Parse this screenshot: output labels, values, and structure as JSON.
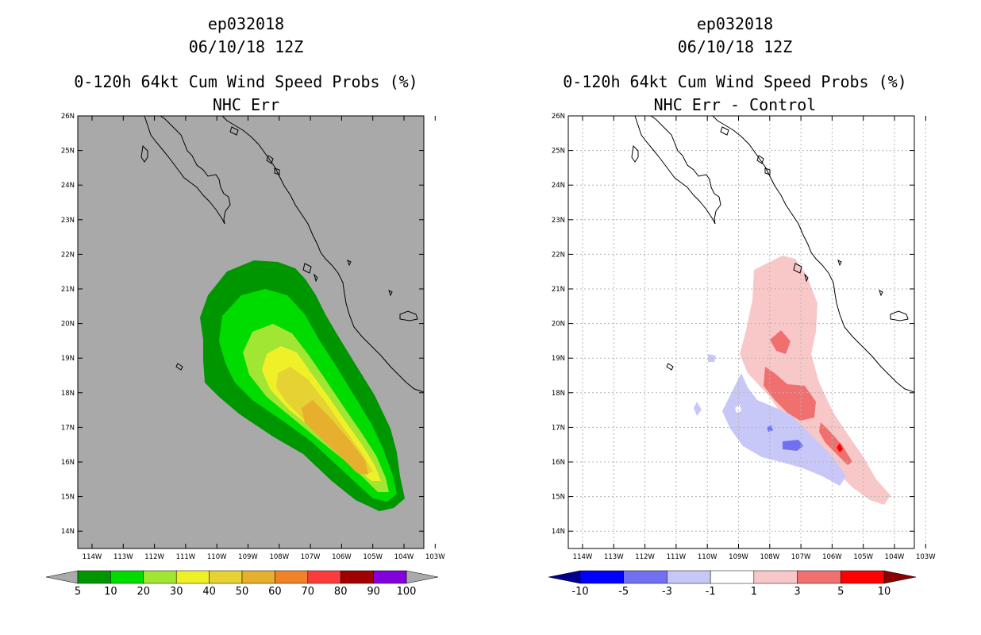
{
  "left_panel": {
    "storm_id": "ep032018",
    "datetime": "06/10/18 12Z",
    "product": "0-120h 64kt Cum Wind Speed Probs (%)",
    "subtitle": "NHC Err",
    "lat_labels": [
      "26N",
      "25N",
      "24N",
      "23N",
      "22N",
      "21N",
      "20N",
      "19N",
      "18N",
      "17N",
      "16N",
      "15N",
      "14N"
    ],
    "lon_labels": [
      "114W",
      "113W",
      "112W",
      "111W",
      "110W",
      "109W",
      "108W",
      "107W",
      "106W",
      "105W",
      "104W",
      "103W"
    ],
    "colorbar": {
      "labels": [
        "5",
        "10",
        "20",
        "30",
        "40",
        "50",
        "60",
        "70",
        "80",
        "90",
        "100"
      ],
      "colors": [
        "#009600",
        "#00dc00",
        "#a0e632",
        "#f0f028",
        "#e6d232",
        "#e6af2d",
        "#f08228",
        "#fa3c3c",
        "#a00000",
        "#8200dc"
      ],
      "end_color": "#aaaaaa"
    },
    "background": "#a9a9a9",
    "probability_values": [
      5,
      10,
      20,
      30,
      40,
      50,
      60
    ]
  },
  "right_panel": {
    "storm_id": "ep032018",
    "datetime": "06/10/18 12Z",
    "product": "0-120h 64kt Cum Wind Speed Probs (%)",
    "subtitle": "NHC Err - Control",
    "lat_labels": [
      "26N",
      "25N",
      "24N",
      "23N",
      "22N",
      "21N",
      "20N",
      "19N",
      "18N",
      "17N",
      "16N",
      "15N",
      "14N"
    ],
    "lon_labels": [
      "114W",
      "113W",
      "112W",
      "111W",
      "110W",
      "109W",
      "108W",
      "107W",
      "106W",
      "105W",
      "104W",
      "103W"
    ],
    "colorbar": {
      "labels": [
        "-10",
        "-5",
        "-3",
        "-1",
        "1",
        "3",
        "5",
        "10"
      ],
      "colors": [
        "#0000ff",
        "#7070f0",
        "#c8c8f8",
        "#ffffff",
        "#f8c8c8",
        "#f07070",
        "#ff0000"
      ],
      "low_end_color": "#00008b",
      "high_end_color": "#8b0000"
    },
    "difference_values": [
      -5,
      -3,
      3,
      5
    ]
  }
}
